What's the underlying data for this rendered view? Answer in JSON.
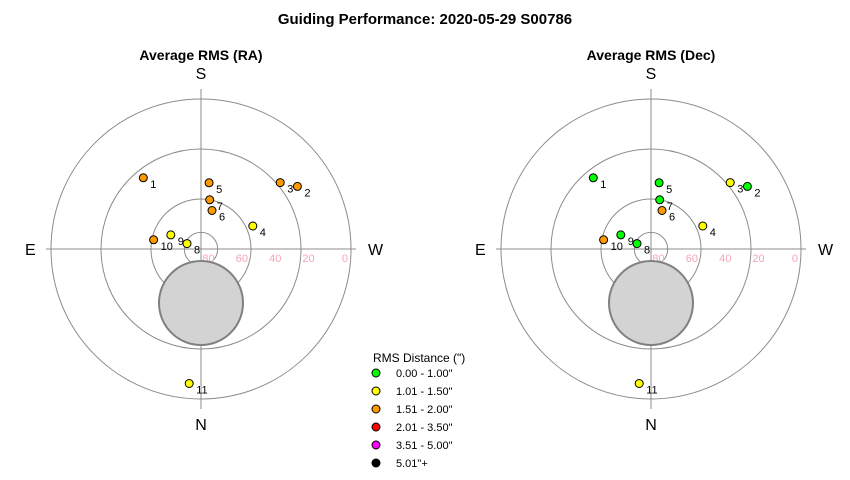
{
  "title": "Guiding Performance: 2020-05-29 S00786",
  "legend": {
    "title": "RMS Distance (\")",
    "items": [
      {
        "label": "0.00 - 1.00\"",
        "color": "#00ff00"
      },
      {
        "label": "1.01 - 1.50\"",
        "color": "#ffff00"
      },
      {
        "label": "1.51 - 2.00\"",
        "color": "#ff9900"
      },
      {
        "label": "2.01 - 3.50\"",
        "color": "#ff0000"
      },
      {
        "label": "3.51 - 5.00\"",
        "color": "#ff00ff"
      },
      {
        "label": "5.01\"+",
        "color": "#000000"
      }
    ]
  },
  "chart_data": [
    {
      "type": "scatter",
      "projection": "polar-altaz",
      "title": "Average RMS (RA)",
      "directions": {
        "top": "S",
        "bottom": "N",
        "left": "E",
        "right": "W"
      },
      "altitude_ticks": [
        "80",
        "60",
        "40",
        "20",
        "0"
      ],
      "points": [
        {
          "label": "1",
          "az": 141,
          "alt": 35,
          "color": "#ff9900"
        },
        {
          "label": "2",
          "az": 237,
          "alt": 21,
          "color": "#ff9900"
        },
        {
          "label": "3",
          "az": 230,
          "alt": 28,
          "color": "#ff9900"
        },
        {
          "label": "4",
          "az": 246,
          "alt": 56,
          "color": "#ffff00"
        },
        {
          "label": "5",
          "az": 187,
          "alt": 50,
          "color": "#ff9900"
        },
        {
          "label": "6",
          "az": 196,
          "alt": 66,
          "color": "#ff9900"
        },
        {
          "label": "7",
          "az": 190,
          "alt": 60,
          "color": "#ff9900"
        },
        {
          "label": "8",
          "az": 111,
          "alt": 81,
          "color": "#ffff00"
        },
        {
          "label": "9",
          "az": 115,
          "alt": 70,
          "color": "#ffff00"
        },
        {
          "label": "10",
          "az": 101,
          "alt": 61,
          "color": "#ff9900"
        },
        {
          "label": "11",
          "az": 5,
          "alt": 9,
          "color": "#ffff00"
        }
      ]
    },
    {
      "type": "scatter",
      "projection": "polar-altaz",
      "title": "Average RMS (Dec)",
      "directions": {
        "top": "S",
        "bottom": "N",
        "left": "E",
        "right": "W"
      },
      "altitude_ticks": [
        "80",
        "60",
        "40",
        "20",
        "0"
      ],
      "points": [
        {
          "label": "1",
          "az": 141,
          "alt": 35,
          "color": "#00ff00"
        },
        {
          "label": "2",
          "az": 237,
          "alt": 21,
          "color": "#00ff00"
        },
        {
          "label": "3",
          "az": 230,
          "alt": 28,
          "color": "#ffff00"
        },
        {
          "label": "4",
          "az": 246,
          "alt": 56,
          "color": "#ffff00"
        },
        {
          "label": "5",
          "az": 187,
          "alt": 50,
          "color": "#00ff00"
        },
        {
          "label": "6",
          "az": 196,
          "alt": 66,
          "color": "#ff9900"
        },
        {
          "label": "7",
          "az": 190,
          "alt": 60,
          "color": "#00ff00"
        },
        {
          "label": "8",
          "az": 111,
          "alt": 81,
          "color": "#00ff00"
        },
        {
          "label": "9",
          "az": 115,
          "alt": 70,
          "color": "#00ff00"
        },
        {
          "label": "10",
          "az": 101,
          "alt": 61,
          "color": "#ff9900"
        },
        {
          "label": "11",
          "az": 5,
          "alt": 9,
          "color": "#ffff00"
        }
      ]
    }
  ]
}
